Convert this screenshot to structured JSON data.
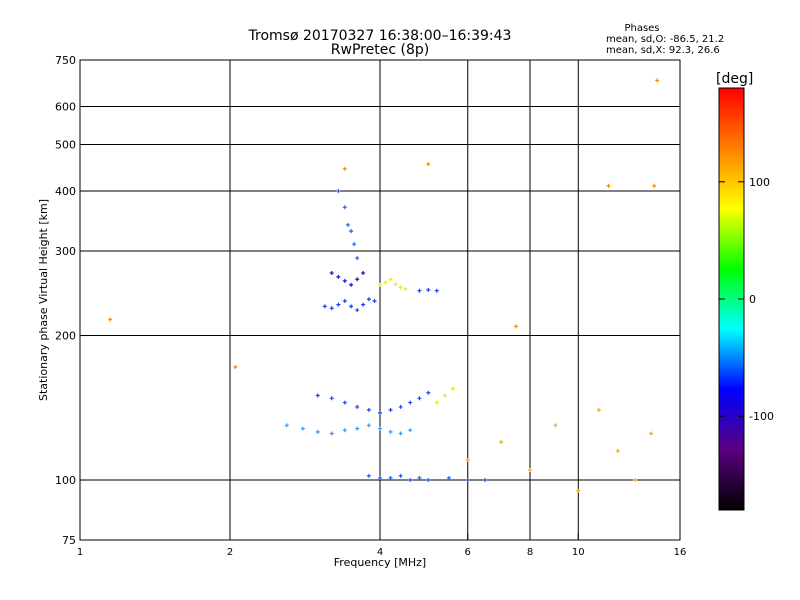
{
  "chart_data": {
    "type": "scatter",
    "title": "Tromsø 20170327 16:38:00–16:39:43",
    "subtitle": "RwPretec (8p)",
    "xlabel": "Frequency [MHz]",
    "ylabel": "Stationary phase Virtual Height [km]",
    "x_scale": "log",
    "y_scale": "log",
    "xlim": [
      1,
      16
    ],
    "ylim": [
      75,
      750
    ],
    "x_ticks": [
      1,
      2,
      4,
      6,
      8,
      10,
      16
    ],
    "y_ticks": [
      75,
      100,
      200,
      300,
      400,
      500,
      600,
      750
    ],
    "grid": true,
    "phases": {
      "title": "Phases",
      "line_o": "mean, sd,O: -86.5, 21.2",
      "line_x": "mean, sd,X:  92.3, 26.6"
    },
    "colorbar": {
      "label": "[deg]",
      "range": [
        -180,
        180
      ],
      "ticks": [
        100,
        0,
        -100
      ],
      "colors": [
        "#000000",
        "#5a0080",
        "#0000ff",
        "#00ffff",
        "#00ff00",
        "#ffff00",
        "#ff8000",
        "#ff0000"
      ]
    },
    "series": [
      {
        "x": [
          3.1,
          3.2,
          3.3,
          3.4,
          3.5,
          3.6,
          3.7,
          3.8,
          3.9
        ],
        "y": [
          230,
          228,
          232,
          236,
          230,
          226,
          232,
          238,
          236
        ],
        "color": "#1a3cff"
      },
      {
        "x": [
          3.2,
          3.3,
          3.4,
          3.5,
          3.6,
          3.7
        ],
        "y": [
          270,
          265,
          260,
          255,
          262,
          270
        ],
        "color": "#1a1acc"
      },
      {
        "x": [
          3.3,
          3.4,
          3.45,
          3.5,
          3.55,
          3.6
        ],
        "y": [
          400,
          370,
          340,
          330,
          310,
          290
        ],
        "color": "#2a5cff"
      },
      {
        "x": [
          4.0,
          4.1,
          4.2,
          4.3,
          4.4,
          4.5
        ],
        "y": [
          255,
          258,
          262,
          256,
          252,
          250
        ],
        "color": "#e8e820"
      },
      {
        "x": [
          4.8,
          5.0,
          5.2
        ],
        "y": [
          248,
          249,
          248
        ],
        "color": "#1a3cff"
      },
      {
        "x": [
          3.0,
          3.2,
          3.4,
          3.6,
          3.8,
          4.0,
          4.2,
          4.4,
          4.6,
          4.8,
          5.0
        ],
        "y": [
          150,
          148,
          145,
          142,
          140,
          138,
          140,
          142,
          145,
          148,
          152
        ],
        "color": "#2244ee"
      },
      {
        "x": [
          2.6,
          2.8,
          3.0,
          3.2,
          3.4,
          3.6,
          3.8,
          4.0,
          4.2,
          4.4,
          4.6
        ],
        "y": [
          130,
          128,
          126,
          125,
          127,
          128,
          130,
          128,
          126,
          125,
          127
        ],
        "color": "#3399ff"
      },
      {
        "x": [
          5.2,
          5.4,
          5.6
        ],
        "y": [
          145,
          150,
          155
        ],
        "color": "#e8e820"
      },
      {
        "x": [
          3.8,
          4.0,
          4.2,
          4.4,
          4.6,
          4.8,
          5.0,
          5.5,
          6.0,
          6.5
        ],
        "y": [
          102,
          101,
          101,
          102,
          100,
          101,
          100,
          101,
          100,
          100
        ],
        "color": "#1a5cff"
      },
      {
        "x": [
          6.0,
          7.0,
          8.0,
          9.0,
          10.0,
          11.0,
          12.0,
          13.0,
          14.0
        ],
        "y": [
          110,
          120,
          105,
          130,
          95,
          140,
          115,
          100,
          125
        ],
        "color": "#ffaa00"
      },
      {
        "x": [
          1.15,
          2.05,
          3.4,
          5.0,
          7.5,
          11.5,
          14.2,
          14.4
        ],
        "y": [
          216,
          172,
          445,
          455,
          209,
          410,
          410,
          680
        ],
        "color": "#ff8800"
      }
    ]
  }
}
